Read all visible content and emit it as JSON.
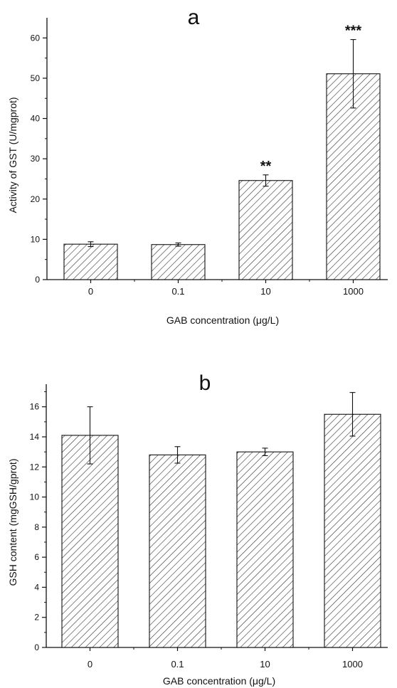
{
  "chart_data": [
    {
      "type": "bar",
      "panel_label": "a",
      "categories": [
        "0",
        "0.1",
        "10",
        "1000"
      ],
      "values": [
        8.8,
        8.7,
        24.6,
        51.1
      ],
      "errors": [
        0.6,
        0.4,
        1.4,
        8.5
      ],
      "significance": [
        "",
        "",
        "**",
        "***"
      ],
      "xlabel": "GAB concentration (μg/L)",
      "ylabel": "Activity of GST (U/mgprot)",
      "ylim": [
        0,
        65
      ],
      "yticks": [
        0,
        10,
        20,
        30,
        40,
        50,
        60
      ],
      "grid": false,
      "legend": "none",
      "bar_fill": "hatched"
    },
    {
      "type": "bar",
      "panel_label": "b",
      "categories": [
        "0",
        "0.1",
        "10",
        "1000"
      ],
      "values": [
        14.1,
        12.8,
        13.0,
        15.5
      ],
      "errors": [
        1.9,
        0.55,
        0.25,
        1.45
      ],
      "significance": [
        "",
        "",
        "",
        ""
      ],
      "xlabel": "GAB concentration (μg/L)",
      "ylabel": "GSH content (mgGSH/gprot)",
      "ylim": [
        0,
        17.5
      ],
      "yticks": [
        0,
        2,
        4,
        6,
        8,
        10,
        12,
        14,
        16
      ],
      "grid": false,
      "legend": "none",
      "bar_fill": "hatched"
    }
  ],
  "colors": {
    "axis": "#111111",
    "hatch": "#333333",
    "bar_bg": "#ffffff"
  }
}
